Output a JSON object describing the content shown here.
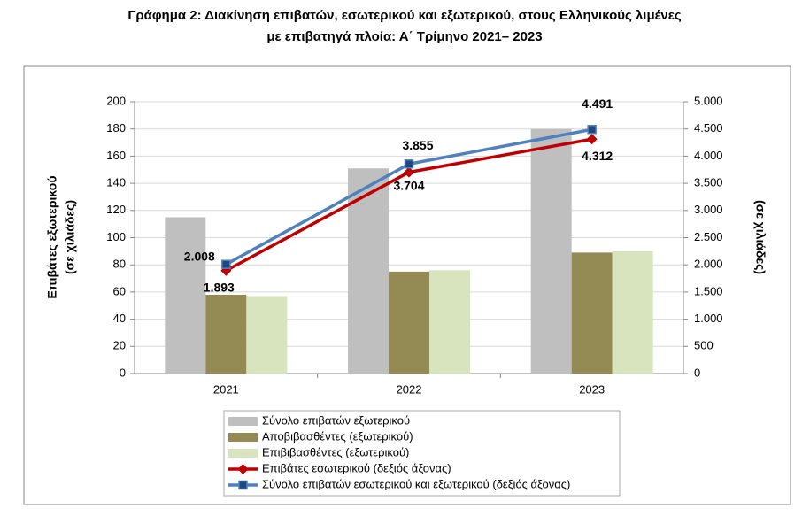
{
  "chart_data": {
    "type": "bar",
    "title": [
      "Γράφημα 2: Διακίνηση επιβατών, εσωτερικού και εξωτερικού, στους Ελληνικούς λιμένες",
      "με επιβατηγά πλοία: Α΄ Τρίμηνο 2021– 2023"
    ],
    "ylabel": [
      "Επιβάτες εξωτερικού",
      "(σε χιλιάδες)"
    ],
    "y2label": "(σε χιλιάδες)",
    "categories": [
      "2021",
      "2022",
      "2023"
    ],
    "series": [
      {
        "name": "Σύνολο επιβατών εξωτερικού",
        "type": "bar",
        "color": "#bfbfbf",
        "values": [
          115,
          151,
          180
        ]
      },
      {
        "name": "Αποβιβασθέντες (εξωτερικού)",
        "type": "bar",
        "color": "#948a54",
        "values": [
          58,
          75,
          89
        ]
      },
      {
        "name": "Επιβιβασθέντες (εξωτερικού)",
        "type": "bar",
        "color": "#d7e4bd",
        "values": [
          57,
          76,
          90
        ]
      },
      {
        "name": "Επιβάτες εσωτερικού (δεξιός άξονας)",
        "type": "line",
        "axis": "y2",
        "color": "#c00000",
        "marker": "diamond",
        "values": [
          1893,
          3704,
          4312
        ],
        "value_labels": [
          "1.893",
          "3.704",
          "4.312"
        ]
      },
      {
        "name": "Σύνολο επιβατών εσωτερικού και εξωτερικού (δεξιός άξονας)",
        "type": "line",
        "axis": "y2",
        "color": "#4f81bd",
        "marker": "square",
        "values": [
          2008,
          3855,
          4491
        ],
        "value_labels": [
          "2.008",
          "3.855",
          "4.491"
        ]
      }
    ],
    "ylim": [
      0,
      200
    ],
    "yticks": [
      0,
      20,
      40,
      60,
      80,
      100,
      120,
      140,
      160,
      180,
      200
    ],
    "y2lim": [
      0,
      5000
    ],
    "y2ticks": [
      0,
      500,
      {
        "value": 1000,
        "label": "1.000"
      },
      {
        "value": 1500,
        "label": "1.500"
      },
      {
        "value": 2000,
        "label": "2.000"
      },
      {
        "value": 2500,
        "label": "2.500"
      },
      {
        "value": 3000,
        "label": "3.000"
      },
      {
        "value": 3500,
        "label": "3.500"
      },
      {
        "value": 4000,
        "label": "4.000"
      },
      {
        "value": 4500,
        "label": "4.500"
      },
      {
        "value": 5000,
        "label": "5.000"
      }
    ],
    "grid": true,
    "legend": "bottom"
  }
}
